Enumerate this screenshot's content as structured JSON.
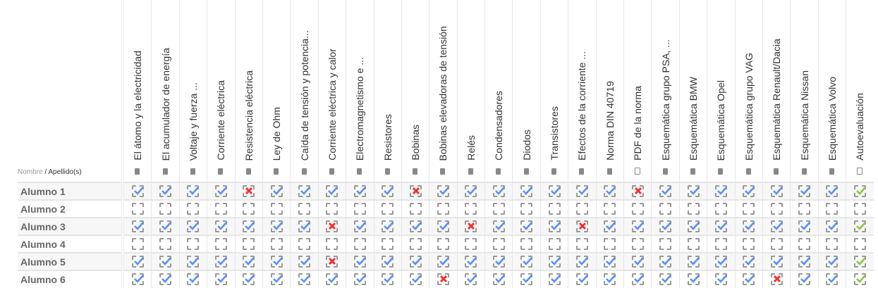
{
  "header": {
    "first_name_label": "Nombre",
    "separator": " / ",
    "last_name_label": "Apellido(s)"
  },
  "activities": [
    {
      "title": "El átomo y la electricidad",
      "icon": "book-icon"
    },
    {
      "title": "El acumulador de energía",
      "icon": "book-icon"
    },
    {
      "title": "Voltaje y fuerza ...",
      "icon": "book-icon"
    },
    {
      "title": "Corriente eléctrica",
      "icon": "book-icon"
    },
    {
      "title": "Resistencia eléctrica",
      "icon": "book-icon"
    },
    {
      "title": "Ley de Ohm",
      "icon": "book-icon"
    },
    {
      "title": "Caída de tensión y potencia...",
      "icon": "book-icon"
    },
    {
      "title": "Corriente eléctrica y calor",
      "icon": "book-icon"
    },
    {
      "title": "Electromagnetismo e ...",
      "icon": "book-icon"
    },
    {
      "title": "Resistores",
      "icon": "book-icon"
    },
    {
      "title": "Bobinas",
      "icon": "book-icon"
    },
    {
      "title": "Bobinas elevadoras de tensión",
      "icon": "book-icon"
    },
    {
      "title": "Relés",
      "icon": "book-icon"
    },
    {
      "title": "Condensadores",
      "icon": "book-icon"
    },
    {
      "title": "Diodos",
      "icon": "book-icon"
    },
    {
      "title": "Transistores",
      "icon": "book-icon"
    },
    {
      "title": "Efectos de la corriente ...",
      "icon": "book-icon"
    },
    {
      "title": "Norma DIN 40719",
      "icon": "book-icon"
    },
    {
      "title": "PDF de la norma",
      "icon": "file-download-icon"
    },
    {
      "title": "Esquemática grupo PSA, ...",
      "icon": "book-icon"
    },
    {
      "title": "Esquemática BMW",
      "icon": "book-icon"
    },
    {
      "title": "Esquemática Opel",
      "icon": "book-icon"
    },
    {
      "title": "Esquemática grupo VAG",
      "icon": "book-icon"
    },
    {
      "title": "Esquemática Renault/Dacia",
      "icon": "book-icon"
    },
    {
      "title": "Esquemática Nissan",
      "icon": "book-icon"
    },
    {
      "title": "Esquemática Volvo",
      "icon": "book-icon"
    },
    {
      "title": "Autoevaluación",
      "icon": "quiz-icon"
    }
  ],
  "status_legend": {
    "c": "complete",
    "f": "complete-fail",
    "p": "complete-pass",
    "n": "not-complete"
  },
  "colors": {
    "complete": "#5b8ff9",
    "fail": "#f03030",
    "pass": "#8cc63f",
    "box": "#999999"
  },
  "students": [
    {
      "name": "Alumno 1",
      "status": "ccccfcccccfcccccccfcccccccp"
    },
    {
      "name": "Alumno 2",
      "status": "nnnnnnnnnnnnnnnnnnnnnnnnnnn"
    },
    {
      "name": "Alumno 3",
      "status": "cccccccfccccfcccfcccccccccp"
    },
    {
      "name": "Alumno 4",
      "status": "nnnnnnnnnnnnnnnnnnnnnnnnnnn"
    },
    {
      "name": "Alumno 5",
      "status": "cccccccfccccccccccccccccccp"
    },
    {
      "name": "Alumno 6",
      "status": "cccccccccccfcccccccccccfccp"
    }
  ]
}
